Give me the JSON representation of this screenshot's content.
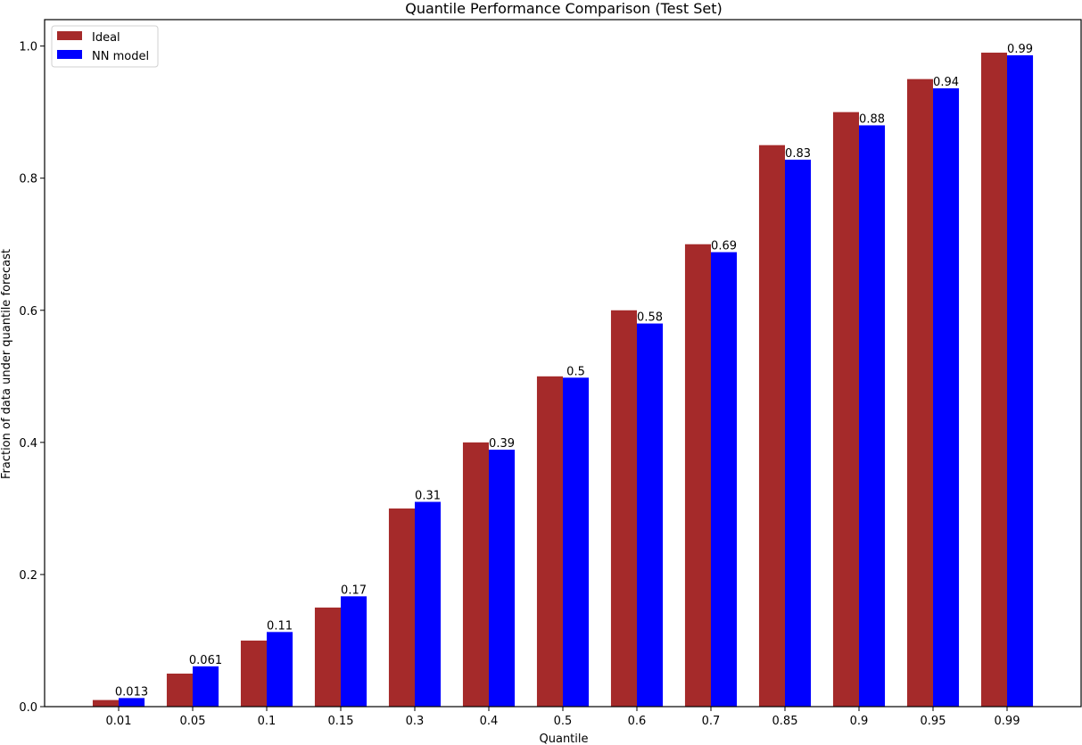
{
  "chart_data": {
    "type": "bar",
    "title": "Quantile Performance Comparison (Test Set)",
    "xlabel": "Quantile",
    "ylabel": "Fraction of data under quantile forecast",
    "categories": [
      "0.01",
      "0.05",
      "0.1",
      "0.15",
      "0.3",
      "0.4",
      "0.5",
      "0.6",
      "0.7",
      "0.85",
      "0.9",
      "0.95",
      "0.99"
    ],
    "ylim": [
      0,
      1.04
    ],
    "yticks": [
      "0.0",
      "0.2",
      "0.4",
      "0.6",
      "0.8",
      "1.0"
    ],
    "grid": false,
    "legend_position": "top-left",
    "series": [
      {
        "name": "Ideal",
        "color": "#a52a2a",
        "values": [
          0.01,
          0.05,
          0.1,
          0.15,
          0.3,
          0.4,
          0.5,
          0.6,
          0.7,
          0.85,
          0.9,
          0.95,
          0.99
        ]
      },
      {
        "name": "NN model",
        "color": "#0000ff",
        "values": [
          0.013,
          0.061,
          0.113,
          0.167,
          0.31,
          0.389,
          0.498,
          0.58,
          0.688,
          0.828,
          0.88,
          0.936,
          0.986
        ],
        "data_labels": [
          "0.013",
          "0.061",
          "0.11",
          "0.17",
          "0.31",
          "0.39",
          "0.5",
          "0.58",
          "0.69",
          "0.83",
          "0.88",
          "0.94",
          "0.99"
        ]
      }
    ]
  }
}
